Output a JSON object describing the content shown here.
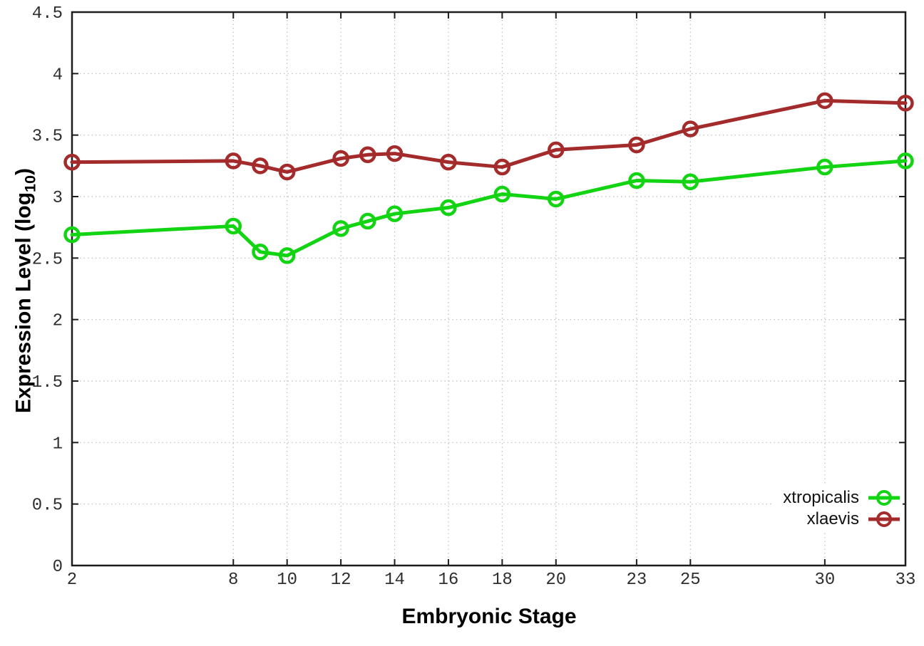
{
  "figure": {
    "background": "#ffffff",
    "axis_color": "#1d1d1d",
    "grid_color": "#bdbdbd",
    "tick_label_color": "#2e2e2e"
  },
  "chart_data": {
    "type": "line",
    "title": "",
    "xlabel": "Embryonic Stage",
    "ylabel": "Expression Level (log10)",
    "ylabel_prefix": "Expression Level (log",
    "ylabel_sub": "10",
    "ylabel_suffix": ")",
    "x": [
      2,
      8,
      9,
      10,
      12,
      13,
      14,
      16,
      18,
      20,
      23,
      25,
      30,
      33
    ],
    "series": [
      {
        "name": "xtropicalis",
        "color": "#12d412",
        "values": [
          2.69,
          2.76,
          2.55,
          2.52,
          2.74,
          2.8,
          2.86,
          2.91,
          3.02,
          2.98,
          3.13,
          3.12,
          3.24,
          3.29
        ]
      },
      {
        "name": "xlaevis",
        "color": "#a32b2b",
        "values": [
          3.28,
          3.29,
          3.25,
          3.2,
          3.31,
          3.34,
          3.35,
          3.28,
          3.24,
          3.38,
          3.42,
          3.55,
          3.78,
          3.76
        ]
      }
    ],
    "xlim": [
      2,
      33
    ],
    "ylim": [
      0,
      4.5
    ],
    "xticks": [
      2,
      8,
      10,
      12,
      14,
      16,
      18,
      20,
      23,
      25,
      30,
      33
    ],
    "xtick_labels": [
      "2",
      "8",
      "10",
      "12",
      "14",
      "16",
      "18",
      "20",
      "23",
      "25",
      "30",
      "33"
    ],
    "yticks": [
      0,
      0.5,
      1,
      1.5,
      2,
      2.5,
      3,
      3.5,
      4,
      4.5
    ],
    "ytick_labels": [
      "0",
      "0.5",
      "1",
      "1.5",
      "2",
      "2.5",
      "3",
      "3.5",
      "4",
      "4.5"
    ],
    "grid": true,
    "grid_style": "dotted",
    "legend_position": "bottom-right",
    "marker": "open-circle",
    "line_width": 5
  }
}
